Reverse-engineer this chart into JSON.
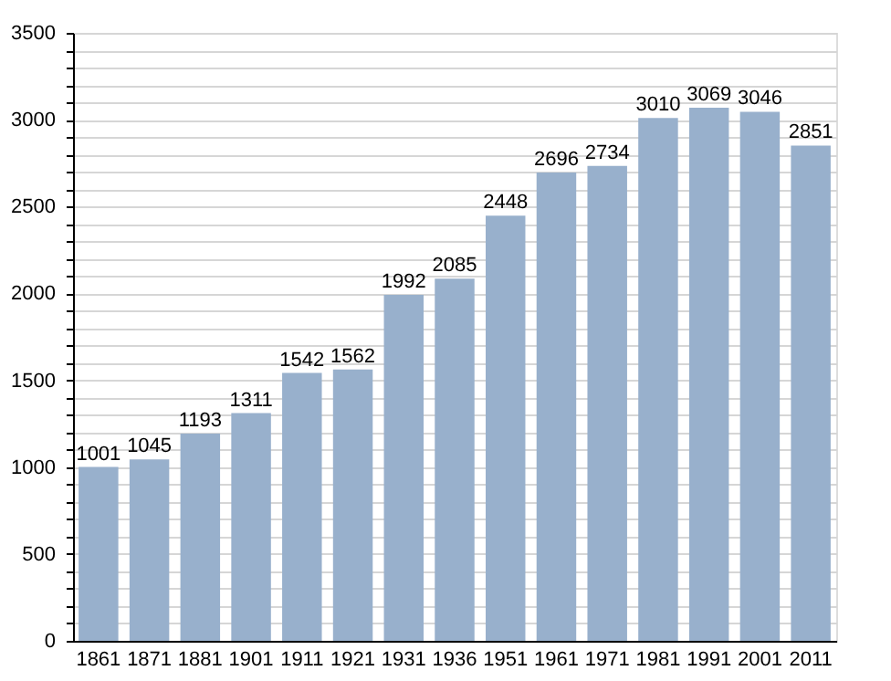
{
  "chart_data": {
    "type": "bar",
    "categories": [
      "1861",
      "1871",
      "1881",
      "1901",
      "1911",
      "1921",
      "1931",
      "1936",
      "1951",
      "1961",
      "1971",
      "1981",
      "1991",
      "2001",
      "2011"
    ],
    "values": [
      1001,
      1045,
      1193,
      1311,
      1542,
      1562,
      1992,
      2085,
      2448,
      2696,
      2734,
      3010,
      3069,
      3046,
      2851
    ],
    "color": "#98b0cc",
    "ylim": [
      0,
      3500
    ],
    "yticks": [
      0,
      {
        "value": 100,
        "label": null
      },
      {
        "value": 200,
        "label": null
      },
      {
        "value": 300,
        "label": null
      },
      {
        "value": 400,
        "label": null
      },
      500,
      {
        "value": 600,
        "label": null
      },
      {
        "value": 700,
        "label": null
      },
      {
        "value": 800,
        "label": null
      },
      {
        "value": 900,
        "label": null
      },
      1000,
      {
        "value": 1100,
        "label": null
      },
      {
        "value": 1200,
        "label": null
      },
      {
        "value": 1300,
        "label": null
      },
      {
        "value": 1400,
        "label": null
      },
      1500,
      {
        "value": 1600,
        "label": null
      },
      {
        "value": 1700,
        "label": null
      },
      {
        "value": 1800,
        "label": null
      },
      {
        "value": 1900,
        "label": null
      },
      2000,
      {
        "value": 2100,
        "label": null
      },
      {
        "value": 2200,
        "label": null
      },
      {
        "value": 2300,
        "label": null
      },
      {
        "value": 2400,
        "label": null
      },
      2500,
      {
        "value": 2600,
        "label": null
      },
      {
        "value": 2700,
        "label": null
      },
      {
        "value": 2800,
        "label": null
      },
      {
        "value": 2900,
        "label": null
      },
      3000,
      {
        "value": 3100,
        "label": null
      },
      {
        "value": 3200,
        "label": null
      },
      {
        "value": 3300,
        "label": null
      },
      {
        "value": 3400,
        "label": null
      },
      3500
    ],
    "grid": "y",
    "data_labels": true
  }
}
